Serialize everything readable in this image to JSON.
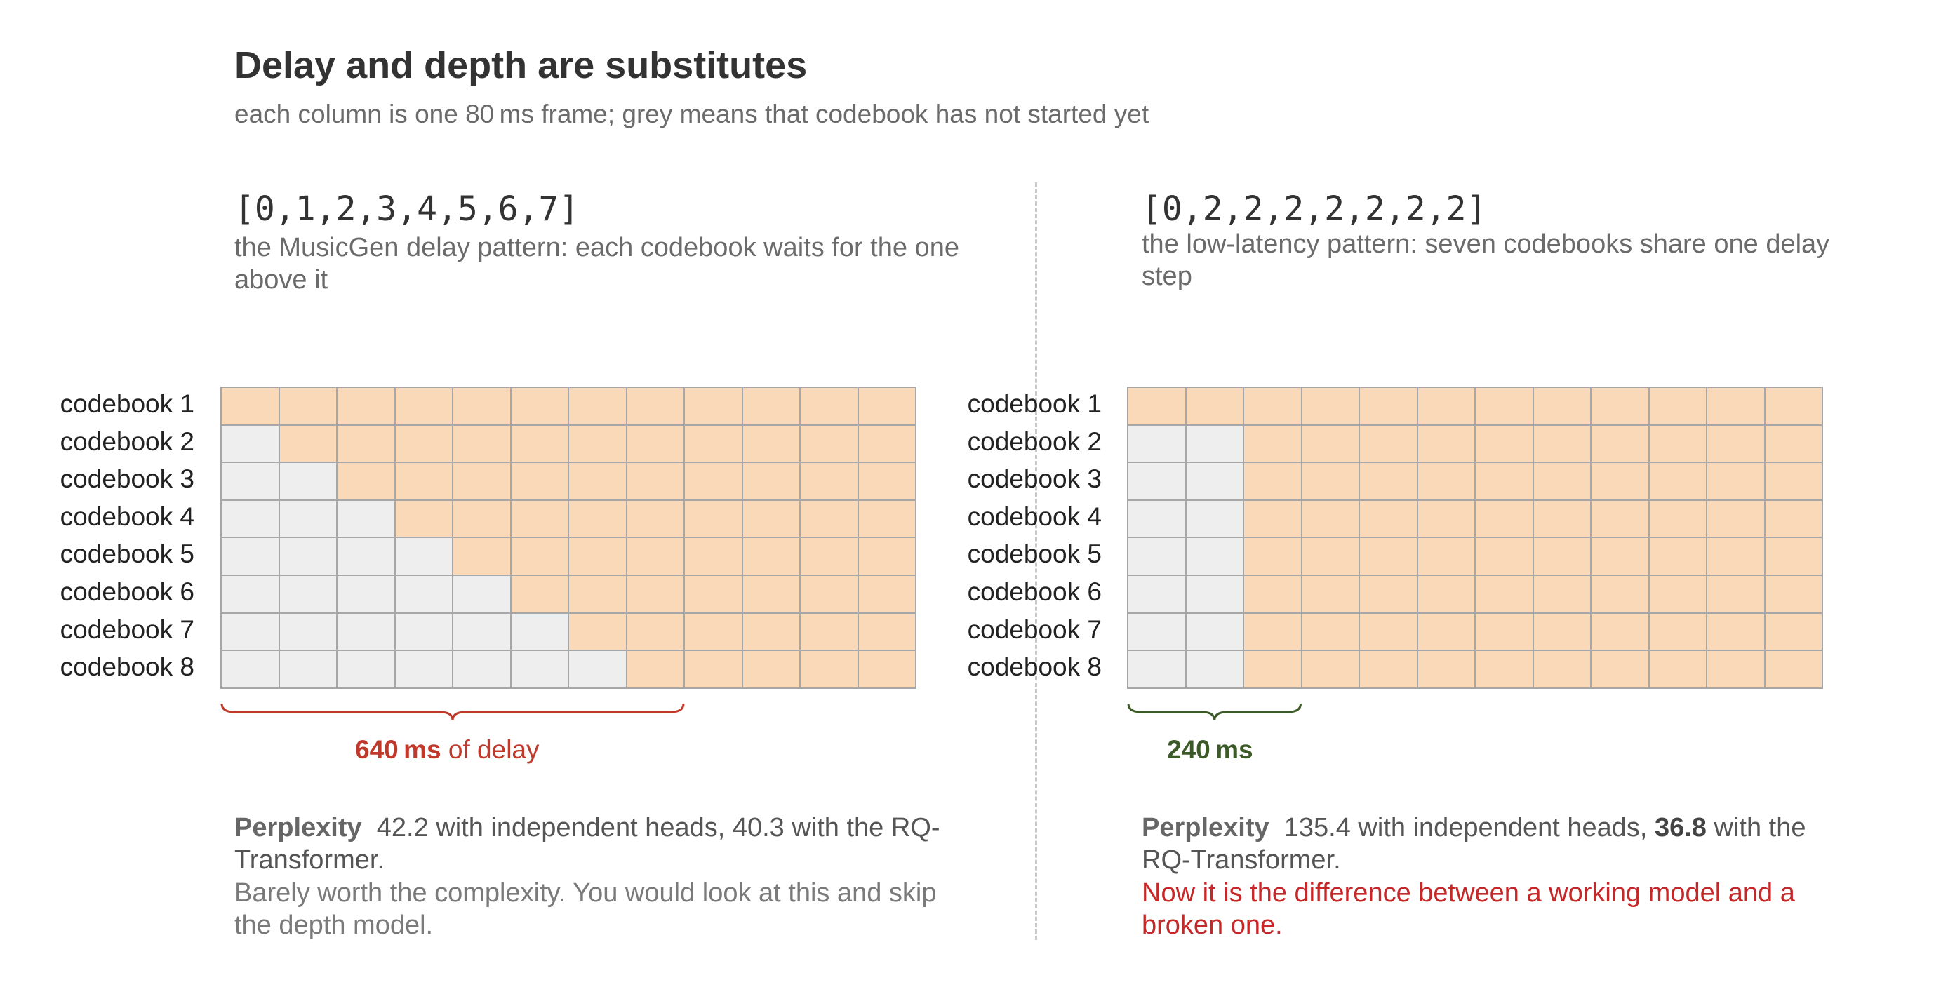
{
  "header": {
    "title": "Delay and depth are substitutes",
    "subtitle": "each column is one 80 ms frame; grey means that codebook has not started yet"
  },
  "colors": {
    "active_cell": "#f9d9b8",
    "inactive_cell": "#eeeeee",
    "cell_border": "#a7a7a7",
    "left_brace": "#c0392b",
    "right_brace": "#3c5a28",
    "warning_text": "#c62828"
  },
  "panels": [
    {
      "pattern": "[0,1,2,3,4,5,6,7]",
      "description": "the MusicGen delay pattern: each codebook waits for the one above it",
      "codebooks": [
        "codebook 1",
        "codebook 2",
        "codebook 3",
        "codebook 4",
        "codebook 5",
        "codebook 6",
        "codebook 7",
        "codebook 8"
      ],
      "delays": [
        0,
        1,
        2,
        3,
        4,
        5,
        6,
        7
      ],
      "frames": 12,
      "brace_frames": 8,
      "delay_value": "640 ms",
      "delay_suffix": " of delay",
      "perplexity_label": "Perplexity",
      "perplexity_text_1": "42.2 with independent heads, 40.3 with the RQ-Transformer.",
      "note": "Barely worth the complexity. You would look at this and skip the depth model."
    },
    {
      "pattern": "[0,2,2,2,2,2,2,2]",
      "description": "the low-latency pattern: seven codebooks share one delay step",
      "codebooks": [
        "codebook 1",
        "codebook 2",
        "codebook 3",
        "codebook 4",
        "codebook 5",
        "codebook 6",
        "codebook 7",
        "codebook 8"
      ],
      "delays": [
        0,
        2,
        2,
        2,
        2,
        2,
        2,
        2
      ],
      "frames": 12,
      "brace_frames": 3,
      "delay_value": "240 ms",
      "delay_suffix": "",
      "perplexity_label": "Perplexity",
      "perplexity_text_1": "135.4 with independent heads,",
      "perplexity_strong": "36.8",
      "perplexity_text_2": "with the RQ-Transformer.",
      "note": "Now it is the difference between a working model and a broken one."
    }
  ]
}
